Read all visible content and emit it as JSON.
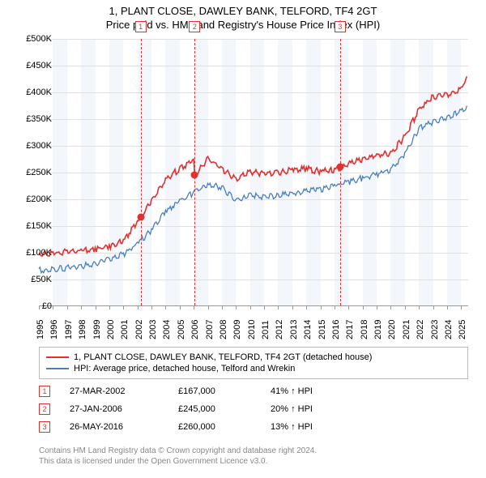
{
  "title_line1": "1, PLANT CLOSE, DAWLEY BANK, TELFORD, TF4 2GT",
  "title_line2": "Price paid vs. HM Land Registry's House Price Index (HPI)",
  "y_axis": {
    "min": 0,
    "max": 500000,
    "tick_step": 50000,
    "labels": [
      "£0",
      "£50K",
      "£100K",
      "£150K",
      "£200K",
      "£250K",
      "£300K",
      "£350K",
      "£400K",
      "£450K",
      "£500K"
    ]
  },
  "x_axis": {
    "min": 1995,
    "max": 2025.5,
    "tick_step": 1,
    "labels": [
      "1995",
      "1996",
      "1997",
      "1998",
      "1999",
      "2000",
      "2001",
      "2002",
      "2003",
      "2004",
      "2005",
      "2006",
      "2007",
      "2008",
      "2009",
      "2010",
      "2011",
      "2012",
      "2013",
      "2014",
      "2015",
      "2016",
      "2017",
      "2018",
      "2019",
      "2020",
      "2021",
      "2022",
      "2023",
      "2024",
      "2025"
    ]
  },
  "alt_band_color": "#f3f7fb",
  "grid_color": "#e0e0e0",
  "series": [
    {
      "name": "price_paid",
      "color": "#e03030",
      "width": 1.6,
      "label": "1, PLANT CLOSE, DAWLEY BANK, TELFORD, TF4 2GT (detached house)",
      "x": [
        1995,
        1996,
        1997,
        1998,
        1999,
        2000,
        2001,
        2002,
        2002.23,
        2003,
        2004,
        2005,
        2006,
        2006.07,
        2007,
        2008,
        2009,
        2010,
        2011,
        2012,
        2013,
        2014,
        2015,
        2016,
        2016.4,
        2017,
        2018,
        2019,
        2020,
        2021,
        2022,
        2023,
        2024,
        2025,
        2025.4
      ],
      "y": [
        100000,
        102000,
        105000,
        107000,
        110000,
        115000,
        125000,
        160000,
        167000,
        200000,
        240000,
        260000,
        275000,
        245000,
        280000,
        260000,
        240000,
        255000,
        250000,
        252000,
        258000,
        260000,
        255000,
        258000,
        260000,
        268000,
        278000,
        285000,
        290000,
        320000,
        370000,
        395000,
        398000,
        410000,
        430000
      ]
    },
    {
      "name": "hpi",
      "color": "#4a7fbf",
      "width": 1.3,
      "label": "HPI: Average price, detached house, Telford and Wrekin",
      "x": [
        1995,
        1996,
        1997,
        1998,
        1999,
        2000,
        2001,
        2002,
        2003,
        2004,
        2005,
        2006,
        2007,
        2008,
        2009,
        2010,
        2011,
        2012,
        2013,
        2014,
        2015,
        2016,
        2017,
        2018,
        2019,
        2020,
        2021,
        2022,
        2023,
        2024,
        2025,
        2025.4
      ],
      "y": [
        70000,
        72000,
        75000,
        78000,
        82000,
        90000,
        100000,
        120000,
        145000,
        180000,
        200000,
        215000,
        230000,
        225000,
        200000,
        212000,
        208000,
        210000,
        213000,
        220000,
        222000,
        228000,
        235000,
        243000,
        250000,
        258000,
        288000,
        335000,
        348000,
        355000,
        367000,
        375000
      ]
    }
  ],
  "markers": [
    {
      "num": "1",
      "x": 2002.23,
      "y": 167000
    },
    {
      "num": "2",
      "x": 2006.07,
      "y": 245000
    },
    {
      "num": "3",
      "x": 2016.4,
      "y": 260000
    }
  ],
  "marker_color": "#e03030",
  "transactions": [
    {
      "num": "1",
      "date": "27-MAR-2002",
      "price": "£167,000",
      "pct": "41% ↑ HPI"
    },
    {
      "num": "2",
      "date": "27-JAN-2006",
      "price": "£245,000",
      "pct": "20% ↑ HPI"
    },
    {
      "num": "3",
      "date": "26-MAY-2016",
      "price": "£260,000",
      "pct": "13% ↑ HPI"
    }
  ],
  "footer_line1": "Contains HM Land Registry data © Crown copyright and database right 2024.",
  "footer_line2": "This data is licensed under the Open Government Licence v3.0."
}
